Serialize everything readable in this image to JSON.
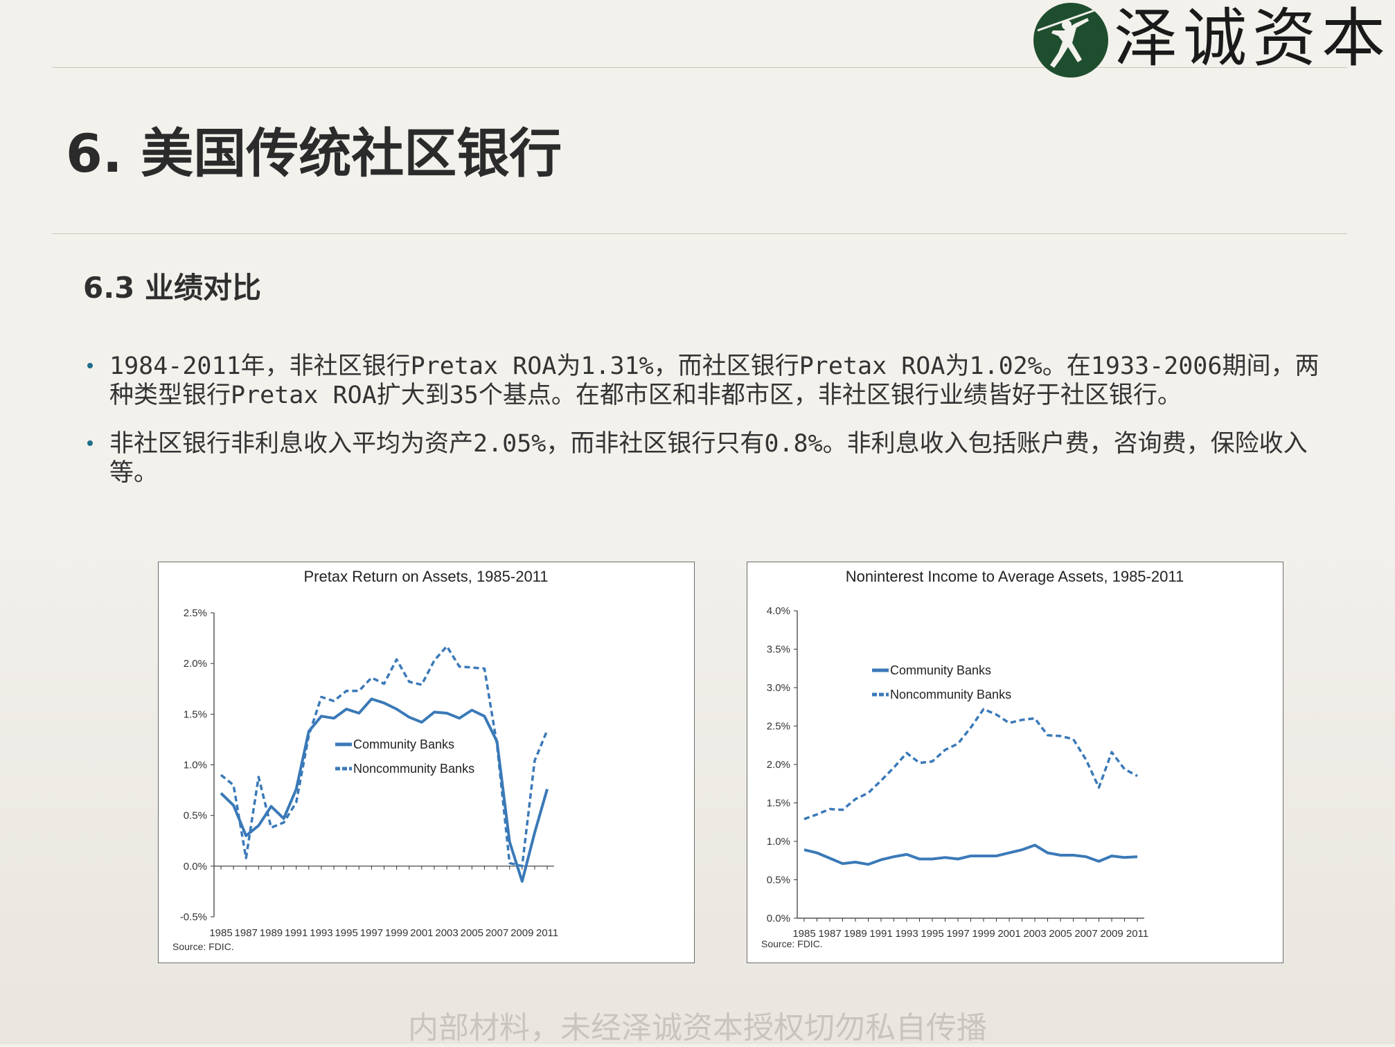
{
  "header": {
    "logo_text": "泽诚资本",
    "title": "6. 美国传统社区银行"
  },
  "section": {
    "title": "6.3 业绩对比"
  },
  "bullets": [
    "1984-2011年，非社区银行Pretax ROA为1.31%，而社区银行Pretax ROA为1.02%。在1933-2006期间，两种类型银行Pretax ROA扩大到35个基点。在都市区和非都市区，非社区银行业绩皆好于社区银行。",
    "非社区银行非利息收入平均为资产2.05%，而非社区银行只有0.8%。非利息收入包括账户费，咨询费，保险收入等。"
  ],
  "footer": {
    "note": "内部材料，未经泽诚资本授权切勿私自传播"
  },
  "colors": {
    "series": "#3a79b8",
    "logo_bg": "#1f4e2e"
  },
  "chart_data": [
    {
      "type": "line",
      "title": "Pretax Return on Assets, 1985-2011",
      "source": "Source: FDIC.",
      "x_tick_labels": [
        "1985",
        "1987",
        "1989",
        "1991",
        "1993",
        "1995",
        "1997",
        "1999",
        "2001",
        "2003",
        "2005",
        "2007",
        "2009",
        "2011"
      ],
      "y_tick_labels": [
        "2.5%",
        "2.0%",
        "1.5%",
        "1.0%",
        "0.5%",
        "0.0%",
        "-0.5%"
      ],
      "ylim": [
        -0.5,
        2.5
      ],
      "legend_position": "center",
      "x": [
        1985,
        1986,
        1987,
        1988,
        1989,
        1990,
        1991,
        1992,
        1993,
        1994,
        1995,
        1996,
        1997,
        1998,
        1999,
        2000,
        2001,
        2002,
        2003,
        2004,
        2005,
        2006,
        2007,
        2008,
        2009,
        2010,
        2011
      ],
      "series": [
        {
          "name": "Community Banks",
          "style": "solid",
          "values": [
            0.72,
            0.6,
            0.3,
            0.4,
            0.59,
            0.47,
            0.76,
            1.33,
            1.48,
            1.46,
            1.55,
            1.51,
            1.65,
            1.61,
            1.55,
            1.47,
            1.42,
            1.52,
            1.51,
            1.46,
            1.54,
            1.48,
            1.23,
            0.24,
            -0.15,
            0.33,
            0.76
          ]
        },
        {
          "name": "Noncommunity Banks",
          "style": "dashed",
          "values": [
            0.9,
            0.8,
            0.08,
            0.88,
            0.38,
            0.43,
            0.63,
            1.29,
            1.67,
            1.63,
            1.73,
            1.73,
            1.86,
            1.8,
            2.04,
            1.82,
            1.79,
            2.03,
            2.17,
            1.97,
            1.96,
            1.95,
            1.2,
            0.03,
            0.0,
            1.04,
            1.34
          ]
        }
      ]
    },
    {
      "type": "line",
      "title": "Noninterest Income to Average Assets, 1985-2011",
      "source": "Source: FDIC.",
      "x_tick_labels": [
        "1985",
        "1987",
        "1989",
        "1991",
        "1993",
        "1995",
        "1997",
        "1999",
        "2001",
        "2003",
        "2005",
        "2007",
        "2009",
        "2011"
      ],
      "y_tick_labels": [
        "4.0%",
        "3.5%",
        "3.0%",
        "2.5%",
        "2.0%",
        "1.5%",
        "1.0%",
        "0.5%",
        "0.0%"
      ],
      "ylim": [
        0.0,
        4.0
      ],
      "legend_position": "top-left",
      "x": [
        1985,
        1986,
        1987,
        1988,
        1989,
        1990,
        1991,
        1992,
        1993,
        1994,
        1995,
        1996,
        1997,
        1998,
        1999,
        2000,
        2001,
        2002,
        2003,
        2004,
        2005,
        2006,
        2007,
        2008,
        2009,
        2010,
        2011
      ],
      "series": [
        {
          "name": "Community Banks",
          "style": "solid",
          "values": [
            0.89,
            0.85,
            0.78,
            0.71,
            0.73,
            0.7,
            0.76,
            0.8,
            0.83,
            0.77,
            0.77,
            0.79,
            0.77,
            0.81,
            0.81,
            0.81,
            0.85,
            0.89,
            0.95,
            0.85,
            0.82,
            0.82,
            0.8,
            0.74,
            0.81,
            0.79,
            0.8
          ]
        },
        {
          "name": "Noncommunity Banks",
          "style": "dashed",
          "values": [
            1.29,
            1.35,
            1.42,
            1.41,
            1.55,
            1.63,
            1.79,
            1.96,
            2.15,
            2.02,
            2.04,
            2.19,
            2.27,
            2.48,
            2.72,
            2.65,
            2.54,
            2.58,
            2.6,
            2.38,
            2.37,
            2.33,
            2.06,
            1.7,
            2.16,
            1.94,
            1.85
          ]
        }
      ]
    }
  ]
}
